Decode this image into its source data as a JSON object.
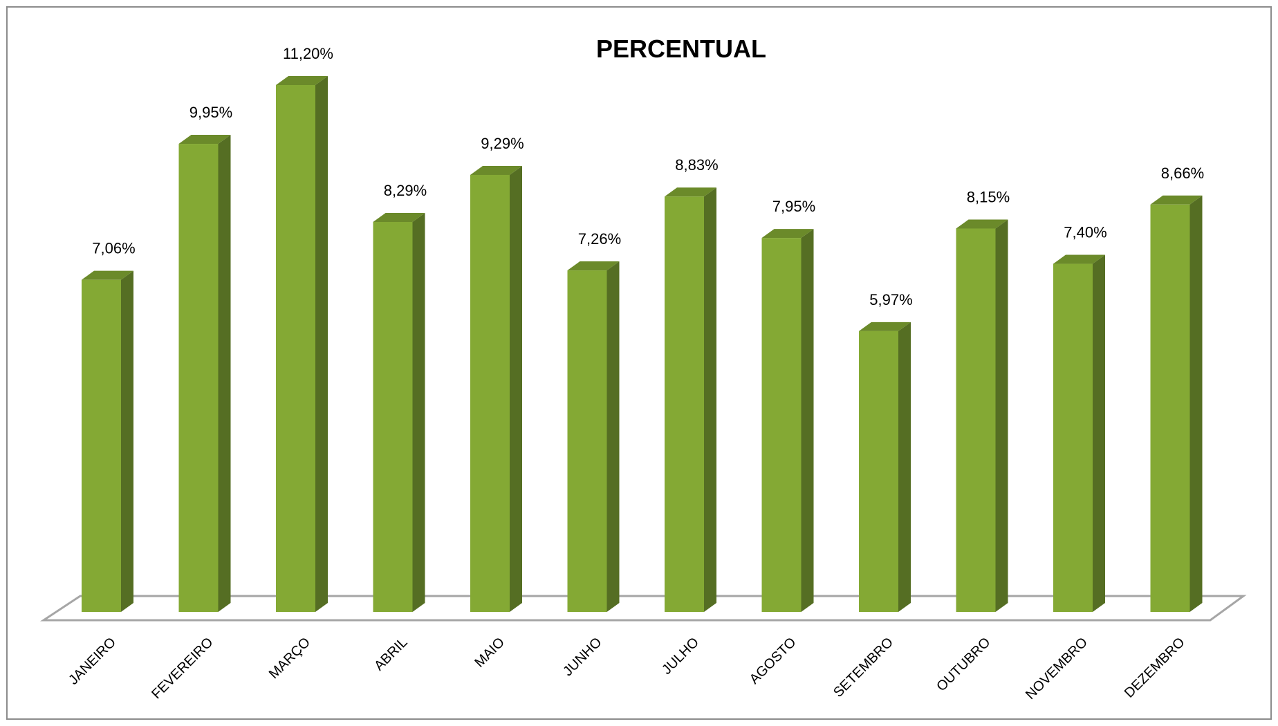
{
  "chart_data": {
    "type": "bar",
    "title": "PERCENTUAL",
    "categories": [
      "JANEIRO",
      "FEVEREIRO",
      "MARÇO",
      "ABRIL",
      "MAIO",
      "JUNHO",
      "JULHO",
      "AGOSTO",
      "SETEMBRO",
      "OUTUBRO",
      "NOVEMBRO",
      "DEZEMBRO"
    ],
    "values": [
      7.06,
      9.95,
      11.2,
      8.29,
      9.29,
      7.26,
      8.83,
      7.95,
      5.97,
      8.15,
      7.4,
      8.66
    ],
    "data_labels": [
      "7,06%",
      "9,95%",
      "11,20%",
      "8,29%",
      "9,29%",
      "7,26%",
      "8,83%",
      "7,95%",
      "5,97%",
      "8,15%",
      "7,40%",
      "8,66%"
    ],
    "xlabel": "",
    "ylabel": "",
    "ylim": [
      0,
      11.2
    ],
    "grid": false,
    "legend": "none",
    "style": "3d-column",
    "colors": {
      "bar_front": "#84A934",
      "bar_side": "#556E23",
      "bar_top": "#6B8A2A",
      "floor_line": "#A6A6A6",
      "frame_border": "#8C8C8C"
    }
  }
}
